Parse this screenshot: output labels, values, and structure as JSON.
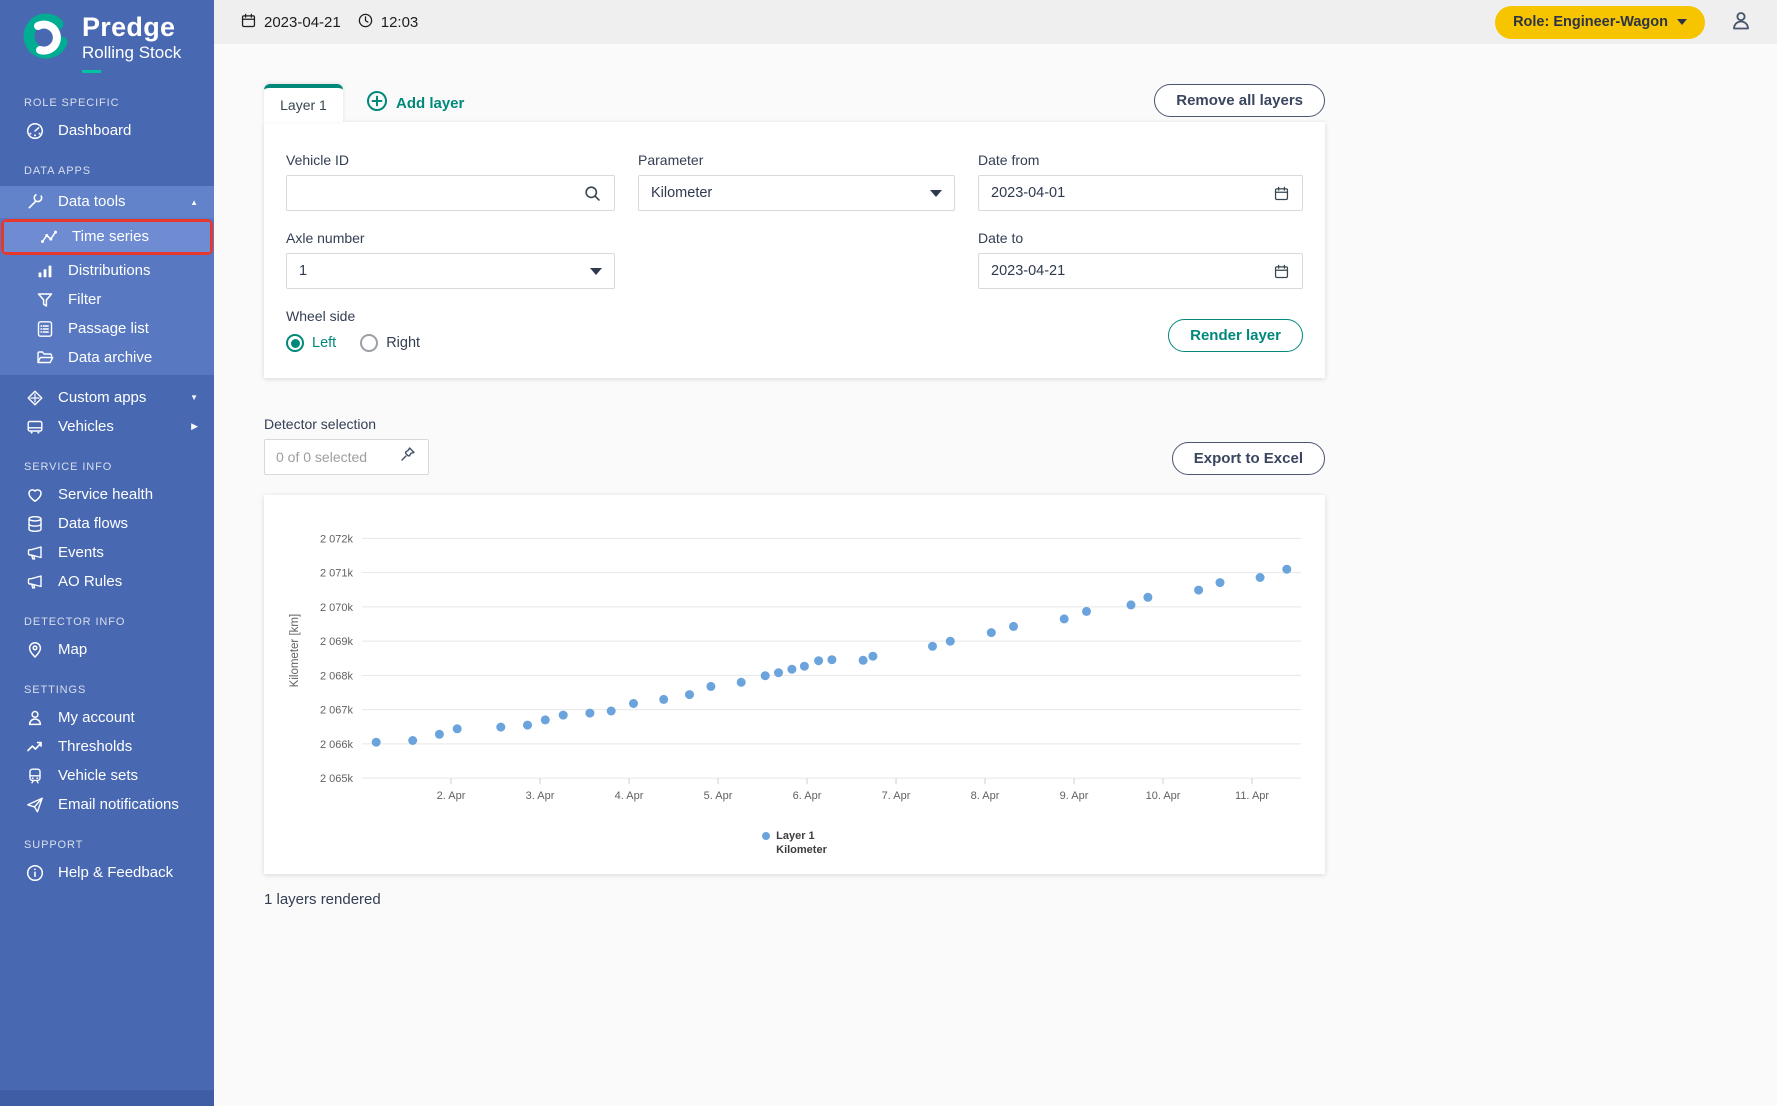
{
  "brand": {
    "name": "Predge",
    "subtitle": "Rolling Stock"
  },
  "topbar": {
    "date": "2023-04-21",
    "time": "12:03",
    "role_label": "Role: Engineer-Wagon"
  },
  "sidebar": {
    "section_role": "ROLE SPECIFIC",
    "dashboard": "Dashboard",
    "section_data_apps": "DATA APPS",
    "data_tools": "Data tools",
    "time_series": "Time series",
    "distributions": "Distributions",
    "filter": "Filter",
    "passage_list": "Passage list",
    "data_archive": "Data archive",
    "custom_apps": "Custom apps",
    "vehicles": "Vehicles",
    "section_service": "SERVICE INFO",
    "service_health": "Service health",
    "data_flows": "Data flows",
    "events": "Events",
    "ao_rules": "AO Rules",
    "section_detector": "DETECTOR INFO",
    "map": "Map",
    "section_settings": "SETTINGS",
    "my_account": "My account",
    "thresholds": "Thresholds",
    "vehicle_sets": "Vehicle sets",
    "email_notifications": "Email notifications",
    "section_support": "SUPPORT",
    "help_feedback": "Help & Feedback"
  },
  "layers": {
    "tab1": "Layer 1",
    "add": "Add layer",
    "remove_all": "Remove all layers"
  },
  "form": {
    "vehicle_id_label": "Vehicle ID",
    "parameter_label": "Parameter",
    "parameter_value": "Kilometer",
    "axle_label": "Axle number",
    "axle_value": "1",
    "date_from_label": "Date from",
    "date_from_value": "2023-04-01",
    "date_to_label": "Date to",
    "date_to_value": "2023-04-21",
    "wheel_side_label": "Wheel side",
    "wheel_left": "Left",
    "wheel_right": "Right",
    "render": "Render layer"
  },
  "detector": {
    "label": "Detector selection",
    "placeholder": "0 of 0 selected"
  },
  "export_label": "Export to Excel",
  "status": "1 layers rendered",
  "chart_data": {
    "type": "scatter",
    "title": "",
    "xlabel": "",
    "ylabel": "Kilometer [km]",
    "grid": "horizontal",
    "legend_position": "bottom-center",
    "series": [
      {
        "name": "Layer 1",
        "parameter": "Kilometer",
        "color": "#6ba3dd"
      }
    ],
    "legend": {
      "line1": "Layer 1",
      "line2": "Kilometer",
      "marker_color": "#6ba3dd"
    },
    "y_tick_values_k": [
      2065,
      2066,
      2067,
      2068,
      2069,
      2070,
      2071,
      2072
    ],
    "y_tick_labels": [
      "2 065k",
      "2 066k",
      "2 067k",
      "2 068k",
      "2 069k",
      "2 070k",
      "2 071k",
      "2 072k"
    ],
    "x_tick_days": [
      2,
      3,
      4,
      5,
      6,
      7,
      8,
      9,
      10,
      11
    ],
    "x_tick_labels": [
      "2. Apr",
      "3. Apr",
      "4. Apr",
      "5. Apr",
      "6. Apr",
      "7. Apr",
      "8. Apr",
      "9. Apr",
      "10. Apr",
      "11. Apr"
    ],
    "xlim_days": [
      1.0,
      11.55
    ],
    "ylim_k": [
      2064.8,
      2072.45
    ],
    "points_day_km_k": [
      [
        1.16,
        2066.05
      ],
      [
        1.57,
        2066.1
      ],
      [
        1.87,
        2066.28
      ],
      [
        2.07,
        2066.44
      ],
      [
        2.56,
        2066.49
      ],
      [
        2.86,
        2066.55
      ],
      [
        3.06,
        2066.7
      ],
      [
        3.26,
        2066.84
      ],
      [
        3.56,
        2066.9
      ],
      [
        3.8,
        2066.96
      ],
      [
        4.05,
        2067.18
      ],
      [
        4.39,
        2067.3
      ],
      [
        4.68,
        2067.44
      ],
      [
        4.92,
        2067.68
      ],
      [
        5.26,
        2067.8
      ],
      [
        5.53,
        2067.99
      ],
      [
        5.68,
        2068.08
      ],
      [
        5.83,
        2068.18
      ],
      [
        5.97,
        2068.27
      ],
      [
        6.13,
        2068.43
      ],
      [
        6.28,
        2068.46
      ],
      [
        6.63,
        2068.44
      ],
      [
        6.74,
        2068.56
      ],
      [
        7.41,
        2068.85
      ],
      [
        7.61,
        2069.0
      ],
      [
        8.07,
        2069.25
      ],
      [
        8.32,
        2069.43
      ],
      [
        8.89,
        2069.65
      ],
      [
        9.14,
        2069.87
      ],
      [
        9.64,
        2070.06
      ],
      [
        9.83,
        2070.28
      ],
      [
        10.4,
        2070.49
      ],
      [
        10.64,
        2070.71
      ],
      [
        11.09,
        2070.86
      ],
      [
        11.39,
        2071.1
      ]
    ]
  }
}
